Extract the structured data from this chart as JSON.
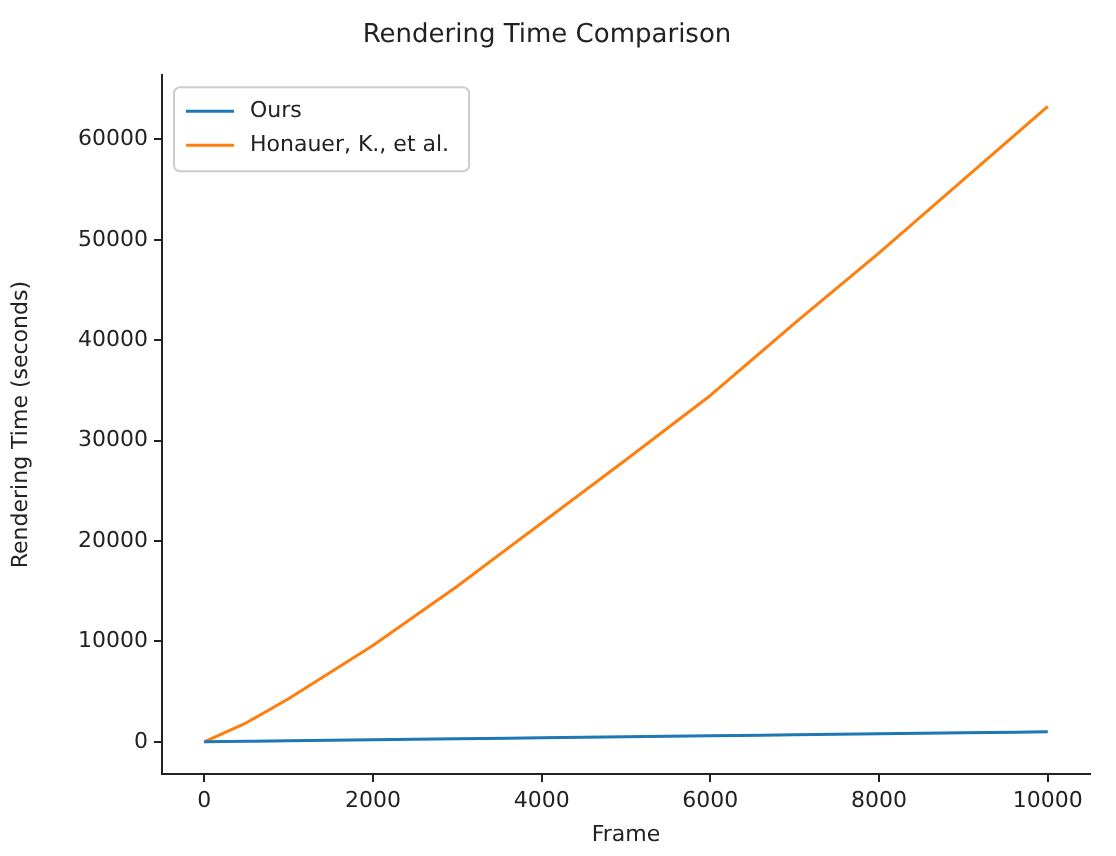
{
  "chart_data": {
    "type": "line",
    "title": "Rendering Time Comparison",
    "xlabel": "Frame",
    "ylabel": "Rendering Time (seconds)",
    "x": [
      0,
      500,
      1000,
      2000,
      3000,
      4000,
      5000,
      6000,
      7000,
      8000,
      9000,
      10000
    ],
    "series": [
      {
        "name": "Ours",
        "color": "#1f77b4",
        "values": [
          0,
          50,
          100,
          200,
          300,
          400,
          500,
          600,
          700,
          800,
          900,
          1000
        ]
      },
      {
        "name": "Honauer, K., et al.",
        "color": "#ff7f0e",
        "values": [
          0,
          1900,
          4300,
          9600,
          15500,
          21800,
          28100,
          34500,
          41700,
          48700,
          56000,
          63300
        ]
      }
    ],
    "xlim": [
      -500,
      10500
    ],
    "ylim": [
      -3200,
      66400
    ],
    "xticks": [
      0,
      2000,
      4000,
      6000,
      8000,
      10000
    ],
    "yticks": [
      0,
      10000,
      20000,
      30000,
      40000,
      50000,
      60000
    ],
    "grid": false,
    "legend": "top left",
    "marker": "none",
    "line_style": "solid"
  }
}
